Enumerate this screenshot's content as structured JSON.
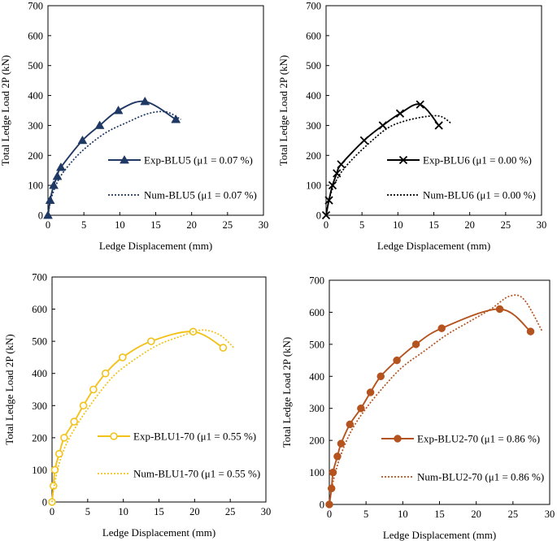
{
  "chart_data": [
    {
      "type": "line",
      "xlabel": "Ledge Displacement (mm)",
      "ylabel": "Total Ledge Load 2P (kN)",
      "xlim": [
        0,
        30
      ],
      "ylim": [
        0,
        700
      ],
      "xticks": [
        "0",
        "5",
        "10",
        "15",
        "20",
        "25",
        "30"
      ],
      "yticks": [
        "0",
        "100",
        "200",
        "300",
        "400",
        "500",
        "600",
        "700"
      ],
      "grid": false,
      "legend_position": "center-right",
      "color": "#1f3864",
      "series": [
        {
          "name": "Exp-BLU5 (μ1 = 0.07 %)",
          "style": "solid",
          "marker": "triangle",
          "x": [
            0,
            0.3,
            0.8,
            1.3,
            1.8,
            4.8,
            7.2,
            9.8,
            13.5,
            17.8
          ],
          "y": [
            0,
            50,
            100,
            130,
            160,
            250,
            300,
            350,
            380,
            320
          ]
        },
        {
          "name": "Num-BLU5 (μ1 = 0.07 %)",
          "style": "dotted",
          "marker": "none",
          "x": [
            0,
            0.5,
            1.5,
            3,
            5,
            8,
            11,
            14,
            16.5,
            18.5
          ],
          "y": [
            0,
            60,
            120,
            170,
            220,
            275,
            310,
            340,
            345,
            320
          ]
        }
      ]
    },
    {
      "type": "line",
      "xlabel": "Ledge Displacement (mm)",
      "ylabel": "Total Ledge Load 2P (kN)",
      "xlim": [
        0,
        30
      ],
      "ylim": [
        0,
        700
      ],
      "xticks": [
        "0",
        "5",
        "10",
        "15",
        "20",
        "25",
        "30"
      ],
      "yticks": [
        "0",
        "100",
        "200",
        "300",
        "400",
        "500",
        "600",
        "700"
      ],
      "grid": false,
      "legend_position": "center-right",
      "color": "#000000",
      "series": [
        {
          "name": "Exp-BLU6 (μ1 = 0.00 %)",
          "style": "solid",
          "marker": "x",
          "x": [
            0,
            0.4,
            0.9,
            1.5,
            2.1,
            5.3,
            7.9,
            10.3,
            13.1,
            15.7
          ],
          "y": [
            0,
            50,
            100,
            140,
            170,
            250,
            300,
            340,
            370,
            300
          ]
        },
        {
          "name": "Num-BLU6 (μ1 = 0.00 %)",
          "style": "dotted",
          "marker": "none",
          "x": [
            0,
            0.5,
            1.5,
            3,
            5.5,
            8.5,
            11,
            14,
            16,
            17.5
          ],
          "y": [
            0,
            60,
            120,
            170,
            230,
            290,
            315,
            330,
            330,
            305
          ]
        }
      ]
    },
    {
      "type": "line",
      "xlabel": "Ledge Displacement (mm)",
      "ylabel": "Total Ledge Load 2P (kN)",
      "xlim": [
        0,
        30
      ],
      "ylim": [
        0,
        700
      ],
      "xticks": [
        "0",
        "5",
        "10",
        "15",
        "20",
        "25",
        "30"
      ],
      "yticks": [
        "0",
        "100",
        "200",
        "300",
        "400",
        "500",
        "600",
        "700"
      ],
      "grid": false,
      "legend_position": "center-right",
      "color": "#f2c21b",
      "series": [
        {
          "name": "Exp-BLU1-70 (μ1 = 0.55 %)",
          "style": "solid",
          "marker": "circle-open",
          "x": [
            0,
            0.2,
            0.4,
            1,
            1.7,
            3.1,
            4.4,
            5.8,
            7.5,
            9.9,
            13.9,
            19.8,
            24
          ],
          "y": [
            0,
            50,
            100,
            150,
            200,
            250,
            300,
            350,
            400,
            450,
            500,
            530,
            480
          ]
        },
        {
          "name": "Num-BLU1-70 (μ1 = 0.55 %)",
          "style": "dotted",
          "marker": "none",
          "x": [
            0,
            0.3,
            1,
            2,
            3.5,
            5,
            7,
            9,
            12,
            15,
            18,
            21,
            23.5,
            25.5
          ],
          "y": [
            0,
            50,
            120,
            180,
            240,
            290,
            350,
            400,
            450,
            490,
            515,
            535,
            520,
            480
          ]
        }
      ]
    },
    {
      "type": "line",
      "xlabel": "Ledge Displacement (mm)",
      "ylabel": "Total Ledge Load 2P (kN)",
      "xlim": [
        0,
        30
      ],
      "ylim": [
        0,
        700
      ],
      "xticks": [
        "0",
        "5",
        "10",
        "15",
        "20",
        "25",
        "30"
      ],
      "yticks": [
        "0",
        "100",
        "200",
        "300",
        "400",
        "500",
        "600",
        "700"
      ],
      "grid": false,
      "legend_position": "center-right",
      "color": "#b5531f",
      "series": [
        {
          "name": "Exp-BLU2-70 (μ1 = 0.86 %)",
          "style": "solid",
          "marker": "circle-filled",
          "x": [
            0,
            0.3,
            0.5,
            1.1,
            1.6,
            2.8,
            4.3,
            5.6,
            7,
            9.2,
            11.8,
            15.3,
            23.2,
            27.4
          ],
          "y": [
            0,
            50,
            100,
            150,
            190,
            250,
            300,
            350,
            400,
            450,
            500,
            550,
            610,
            540
          ]
        },
        {
          "name": "Num-BLU2-70 (μ1 = 0.86 %)",
          "style": "dotted",
          "marker": "none",
          "x": [
            0,
            0.5,
            1.5,
            3,
            5,
            7.5,
            10,
            13,
            16,
            19,
            22,
            24.5,
            26.5,
            29
          ],
          "y": [
            0,
            70,
            150,
            230,
            300,
            370,
            430,
            480,
            530,
            570,
            610,
            650,
            640,
            540
          ]
        }
      ]
    }
  ]
}
